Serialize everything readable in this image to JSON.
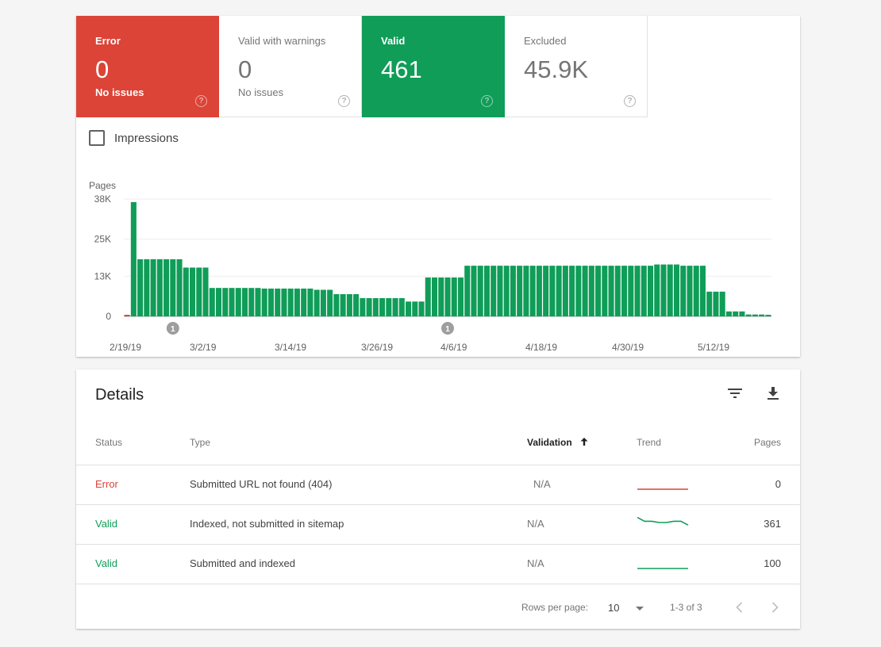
{
  "tiles": [
    {
      "key": "error",
      "label": "Error",
      "value": "0",
      "sub": "No issues"
    },
    {
      "key": "warn",
      "label": "Valid with warnings",
      "value": "0",
      "sub": "No issues"
    },
    {
      "key": "valid",
      "label": "Valid",
      "value": "461",
      "sub": ""
    },
    {
      "key": "excluded",
      "label": "Excluded",
      "value": "45.9K",
      "sub": ""
    }
  ],
  "impressions_label": "Impressions",
  "chart_data": {
    "type": "bar",
    "ylabel": "Pages",
    "yticks": [
      "38K",
      "25K",
      "13K",
      "0"
    ],
    "ytick_values": [
      38000,
      25000,
      13000,
      0
    ],
    "ylim": [
      0,
      38000
    ],
    "xticks": [
      "2/19/19",
      "3/2/19",
      "3/14/19",
      "3/26/19",
      "4/6/19",
      "4/18/19",
      "4/30/19",
      "5/12/19"
    ],
    "annotations": [
      {
        "label": "1",
        "bar_index": 7
      },
      {
        "label": "1",
        "bar_index": 49
      }
    ],
    "colors": {
      "valid": "#0f9d58",
      "error": "#db4437"
    },
    "values": [
      500,
      37000,
      18500,
      18500,
      18500,
      18500,
      18500,
      18500,
      18500,
      15800,
      15800,
      15800,
      15800,
      9200,
      9200,
      9200,
      9200,
      9200,
      9200,
      9200,
      9200,
      9000,
      9000,
      9000,
      9000,
      9000,
      9000,
      9000,
      9000,
      8600,
      8600,
      8600,
      7200,
      7200,
      7200,
      7200,
      5900,
      5900,
      5900,
      5900,
      5900,
      5900,
      5900,
      4800,
      4800,
      4800,
      12600,
      12600,
      12600,
      12600,
      12600,
      12600,
      16400,
      16400,
      16400,
      16400,
      16400,
      16400,
      16400,
      16400,
      16400,
      16400,
      16400,
      16400,
      16400,
      16400,
      16400,
      16400,
      16400,
      16400,
      16400,
      16400,
      16400,
      16400,
      16400,
      16400,
      16400,
      16400,
      16400,
      16400,
      16400,
      16800,
      16800,
      16800,
      16800,
      16400,
      16400,
      16400,
      16400,
      8000,
      8000,
      8000,
      1600,
      1600,
      1600,
      600,
      600,
      600,
      500
    ]
  },
  "details": {
    "title": "Details",
    "filter_icon": "filter-list-icon",
    "download_icon": "download-icon",
    "columns": {
      "status": "Status",
      "type": "Type",
      "validation": "Validation",
      "trend": "Trend",
      "pages": "Pages"
    },
    "rows": [
      {
        "status": "Error",
        "type": "Submitted URL not found (404)",
        "validation": "N/A",
        "pages": "0",
        "trend": [
          0,
          0,
          0,
          0,
          0,
          0,
          0,
          0
        ],
        "trend_color": "#db4437"
      },
      {
        "status": "Valid",
        "type": "Indexed, not submitted in sitemap",
        "validation": "N/A",
        "pages": "361",
        "trend": [
          9,
          6,
          6,
          5,
          5,
          6,
          6,
          3
        ],
        "trend_color": "#0f9d58"
      },
      {
        "status": "Valid",
        "type": "Submitted and indexed",
        "validation": "N/A",
        "pages": "100",
        "trend": [
          0,
          0,
          0,
          0,
          0,
          0,
          0,
          0
        ],
        "trend_color": "#0f9d58"
      }
    ],
    "footer": {
      "rows_per_page_label": "Rows per page:",
      "rows_per_page_value": "10",
      "range": "1-3 of 3"
    }
  }
}
